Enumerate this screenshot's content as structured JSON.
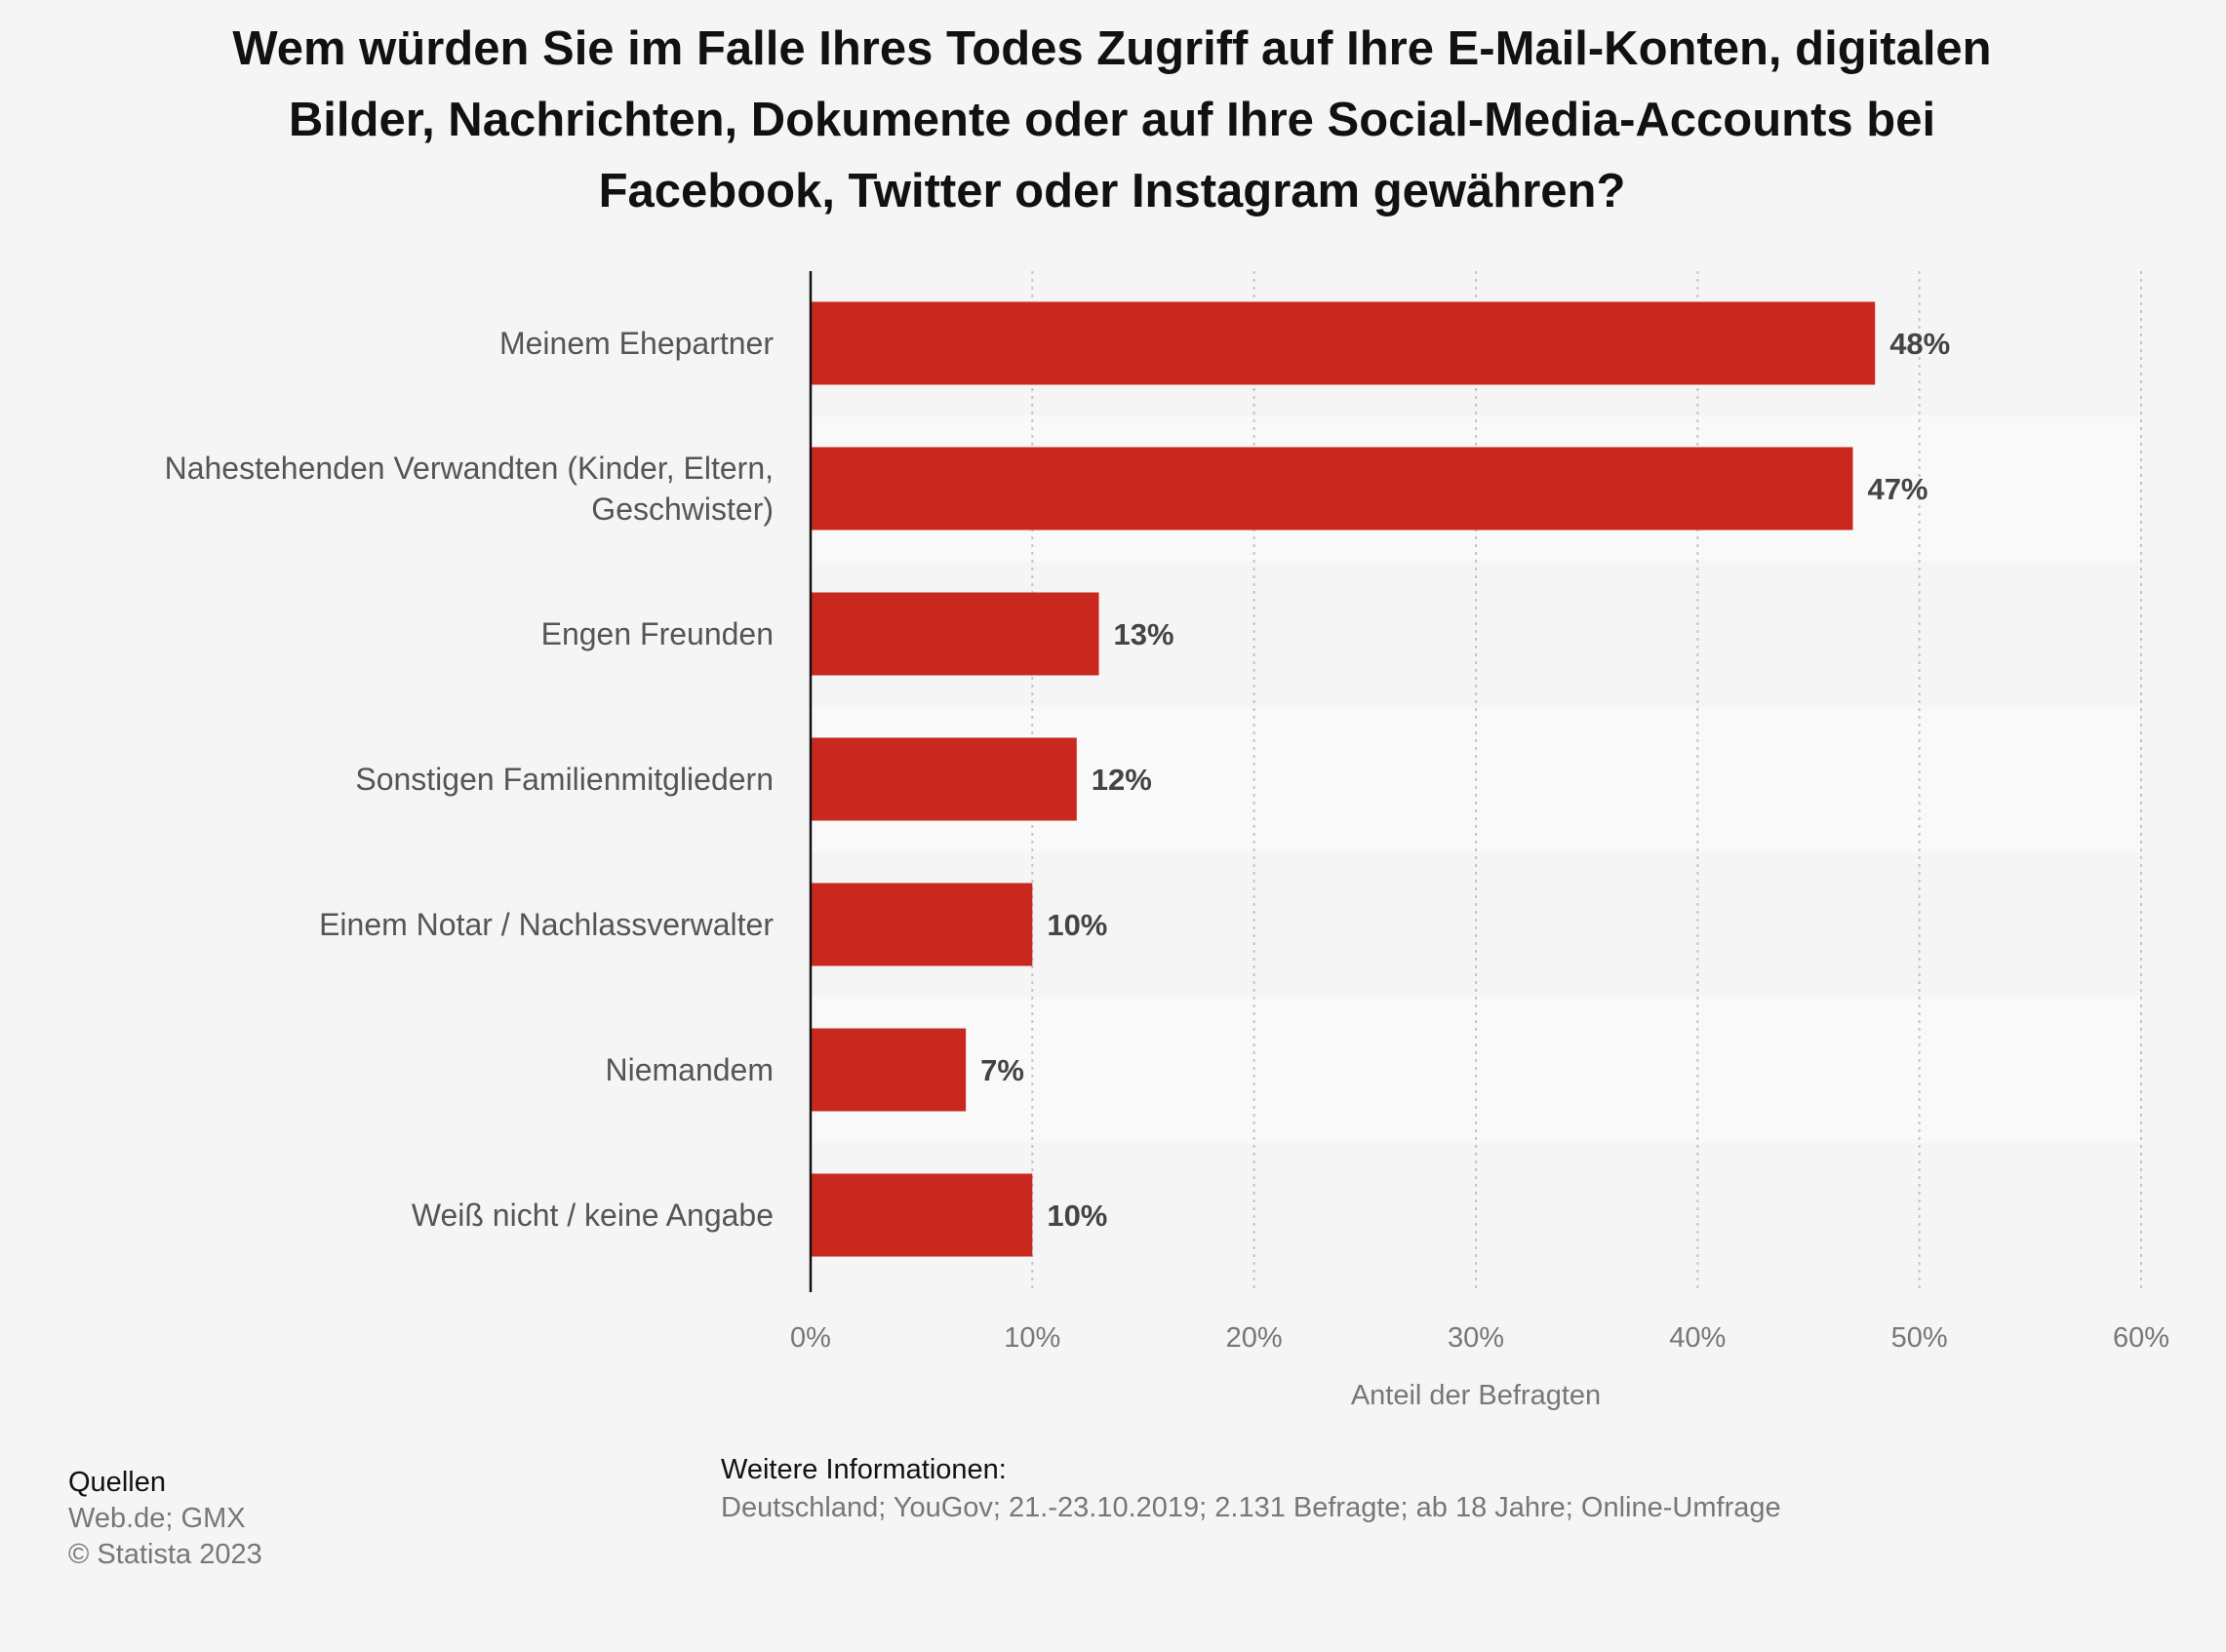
{
  "chart_data": {
    "type": "bar",
    "orientation": "horizontal",
    "title": "Wem würden Sie im Falle Ihres Todes Zugriff auf Ihre E-Mail-Konten, digitalen Bilder, Nachrichten, Dokumente oder auf Ihre Social-Media-Accounts bei Facebook, Twitter oder Instagram gewähren?",
    "categories": [
      [
        "Meinem Ehepartner"
      ],
      [
        "Nahestehenden Verwandten (Kinder, Eltern,",
        "Geschwister)"
      ],
      [
        "Engen Freunden"
      ],
      [
        "Sonstigen Familienmitgliedern"
      ],
      [
        "Einem Notar / Nachlassverwalter"
      ],
      [
        "Niemandem"
      ],
      [
        "Weiß nicht / keine Angabe"
      ]
    ],
    "values": [
      48,
      47,
      13,
      12,
      10,
      7,
      10
    ],
    "value_labels": [
      "48%",
      "47%",
      "13%",
      "12%",
      "10%",
      "7%",
      "10%"
    ],
    "xlabel": "Anteil der Befragten",
    "xlim": [
      0,
      60
    ],
    "x_ticks": [
      0,
      10,
      20,
      30,
      40,
      50,
      60
    ],
    "x_tick_labels": [
      "0%",
      "10%",
      "20%",
      "30%",
      "40%",
      "50%",
      "60%"
    ],
    "grid": "vertical dotted",
    "bar_color": "#c8281e"
  },
  "footer": {
    "sources_heading": "Quellen",
    "sources_lines": [
      "Web.de; GMX",
      "© Statista 2023"
    ],
    "info_heading": "Weitere Informationen:",
    "info_text": "Deutschland; YouGov; 21.-23.10.2019; 2.131 Befragte; ab 18 Jahre; Online-Umfrage"
  }
}
